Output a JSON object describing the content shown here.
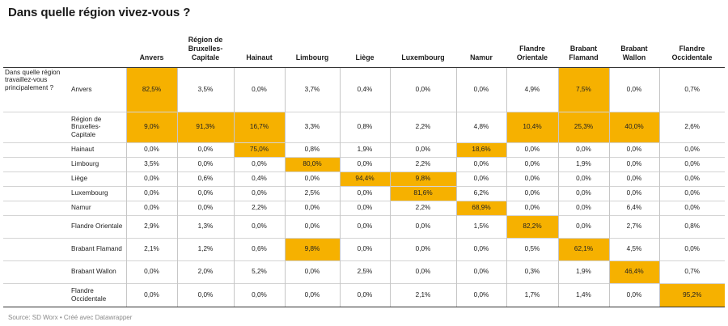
{
  "title": "Dans quelle région vivez-vous ?",
  "footer": "Source: SD Worx • Créé avec Datawrapper",
  "colors": {
    "highlight": "#f6b100",
    "text": "#222222"
  },
  "chart_data": {
    "type": "table",
    "row_header": "Dans quelle région travaillez-vous principalement ?",
    "columns": [
      "Anvers",
      "Région de Bruxelles-Capitale",
      "Hainaut",
      "Limbourg",
      "Liège",
      "Luxembourg",
      "Namur",
      "Flandre Orientale",
      "Brabant Flamand",
      "Brabant Wallon",
      "Flandre Occidentale"
    ],
    "rows": [
      {
        "label": "Anvers",
        "values": [
          "82,5%",
          "3,5%",
          "0,0%",
          "3,7%",
          "0,4%",
          "0,0%",
          "0,0%",
          "4,9%",
          "7,5%",
          "0,0%",
          "0,7%"
        ],
        "highlight": [
          0,
          8
        ]
      },
      {
        "label": "Région de Bruxelles-Capitale",
        "values": [
          "9,0%",
          "91,3%",
          "16,7%",
          "3,3%",
          "0,8%",
          "2,2%",
          "4,8%",
          "10,4%",
          "25,3%",
          "40,0%",
          "2,6%"
        ],
        "highlight": [
          0,
          1,
          2,
          7,
          8,
          9
        ]
      },
      {
        "label": "Hainaut",
        "values": [
          "0,0%",
          "0,0%",
          "75,0%",
          "0,8%",
          "1,9%",
          "0,0%",
          "18,6%",
          "0,0%",
          "0,0%",
          "0,0%",
          "0,0%"
        ],
        "highlight": [
          2,
          6
        ]
      },
      {
        "label": "Limbourg",
        "values": [
          "3,5%",
          "0,0%",
          "0,0%",
          "80,0%",
          "0,0%",
          "2,2%",
          "0,0%",
          "0,0%",
          "1,9%",
          "0,0%",
          "0,0%"
        ],
        "highlight": [
          3
        ]
      },
      {
        "label": "Liège",
        "values": [
          "0,0%",
          "0,6%",
          "0,4%",
          "0,0%",
          "94,4%",
          "9,8%",
          "0,0%",
          "0,0%",
          "0,0%",
          "0,0%",
          "0,0%"
        ],
        "highlight": [
          4,
          5
        ]
      },
      {
        "label": "Luxembourg",
        "values": [
          "0,0%",
          "0,0%",
          "0,0%",
          "2,5%",
          "0,0%",
          "81,6%",
          "6,2%",
          "0,0%",
          "0,0%",
          "0,0%",
          "0,0%"
        ],
        "highlight": [
          5
        ]
      },
      {
        "label": "Namur",
        "values": [
          "0,0%",
          "0,0%",
          "2,2%",
          "0,0%",
          "0,0%",
          "2,2%",
          "68,9%",
          "0,0%",
          "0,0%",
          "6,4%",
          "0,0%"
        ],
        "highlight": [
          6
        ]
      },
      {
        "label": "Flandre Orientale",
        "values": [
          "2,9%",
          "1,3%",
          "0,0%",
          "0,0%",
          "0,0%",
          "0,0%",
          "1,5%",
          "82,2%",
          "0,0%",
          "2,7%",
          "0,8%"
        ],
        "highlight": [
          7
        ]
      },
      {
        "label": "Brabant Flamand",
        "values": [
          "2,1%",
          "1,2%",
          "0,6%",
          "9,8%",
          "0,0%",
          "0,0%",
          "0,0%",
          "0,5%",
          "62,1%",
          "4,5%",
          "0,0%"
        ],
        "highlight": [
          3,
          8
        ]
      },
      {
        "label": "Brabant Wallon",
        "values": [
          "0,0%",
          "2,0%",
          "5,2%",
          "0,0%",
          "2,5%",
          "0,0%",
          "0,0%",
          "0,3%",
          "1,9%",
          "46,4%",
          "0,7%"
        ],
        "highlight": [
          9
        ]
      },
      {
        "label": "Flandre Occidentale",
        "values": [
          "0,0%",
          "0,0%",
          "0,0%",
          "0,0%",
          "0,0%",
          "2,1%",
          "0,0%",
          "1,7%",
          "1,4%",
          "0,0%",
          "95,2%"
        ],
        "highlight": [
          10
        ]
      }
    ]
  }
}
